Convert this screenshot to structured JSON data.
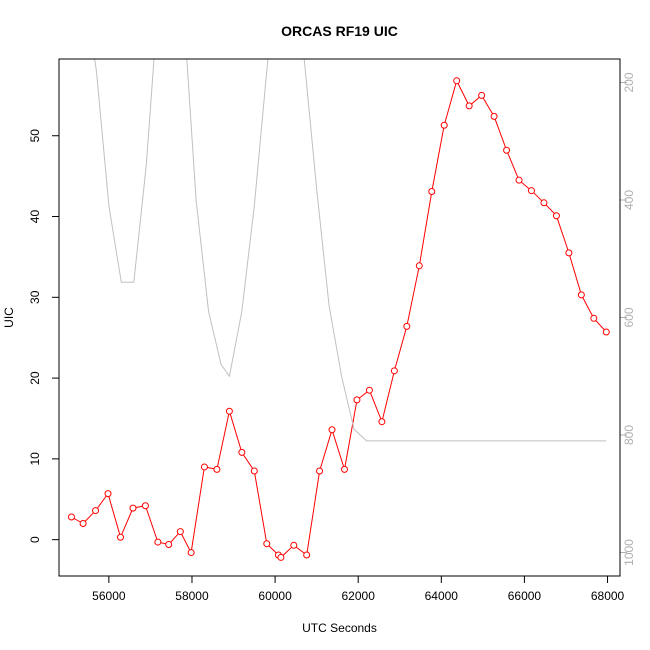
{
  "chart_data": {
    "type": "line",
    "title": "ORCAS RF19 UIC",
    "xlabel": "UTC Seconds",
    "ylabel": "UIC",
    "xlim": [
      54800,
      68300
    ],
    "ylim": [
      -4.5,
      59.5
    ],
    "y2lim": [
      1040,
      160
    ],
    "y2_reversed": true,
    "x_ticks": [
      56000,
      58000,
      60000,
      62000,
      64000,
      66000,
      68000
    ],
    "y_ticks": [
      0,
      10,
      20,
      30,
      40,
      50
    ],
    "y2_ticks": [
      200,
      400,
      600,
      800,
      1000
    ],
    "series": [
      {
        "axis": "left",
        "color": "#ff0000",
        "style": "line-points",
        "x": [
          55100,
          55380,
          55680,
          55980,
          56280,
          56580,
          56880,
          57180,
          57440,
          57720,
          57980,
          58300,
          58600,
          58900,
          59200,
          59500,
          59800,
          60080,
          60140,
          60450,
          60760,
          61070,
          61370,
          61670,
          61970,
          62270,
          62570,
          62870,
          63170,
          63470,
          63770,
          64070,
          64370,
          64670,
          64970,
          65270,
          65570,
          65870,
          66170,
          66470,
          66770,
          67070,
          67370,
          67670,
          67970
        ],
        "y": [
          2.8,
          2.0,
          3.6,
          5.7,
          0.3,
          3.9,
          4.2,
          -0.3,
          -0.6,
          1.0,
          -1.6,
          9.0,
          8.7,
          15.9,
          10.8,
          8.5,
          -0.5,
          -1.9,
          -2.2,
          -0.7,
          -1.9,
          8.5,
          13.6,
          8.7,
          17.3,
          18.5,
          14.6,
          20.9,
          26.4,
          33.9,
          43.1,
          51.3,
          56.8,
          53.7,
          55.0,
          52.4,
          48.2,
          44.5,
          43.2,
          41.7,
          40.1,
          35.5,
          30.3,
          27.4,
          25.7
        ]
      },
      {
        "axis": "right",
        "color": "#c0c0c0",
        "style": "line",
        "x": [
          55200,
          55700,
          56000,
          56300,
          56600,
          56900,
          57200,
          57500,
          57800,
          58100,
          58400,
          58700,
          58900,
          59200,
          59500,
          59800,
          60100,
          60400,
          60700,
          61000,
          61300,
          61600,
          61900,
          62200,
          62500,
          63000,
          64000,
          65000,
          66000,
          67000,
          67970
        ],
        "y": [
          -60,
          180,
          410,
          540,
          540,
          340,
          50,
          -70,
          80,
          400,
          590,
          680,
          700,
          590,
          410,
          180,
          -40,
          -30,
          160,
          380,
          580,
          700,
          790,
          810,
          810,
          810,
          810,
          810,
          810,
          810,
          810
        ]
      }
    ]
  }
}
